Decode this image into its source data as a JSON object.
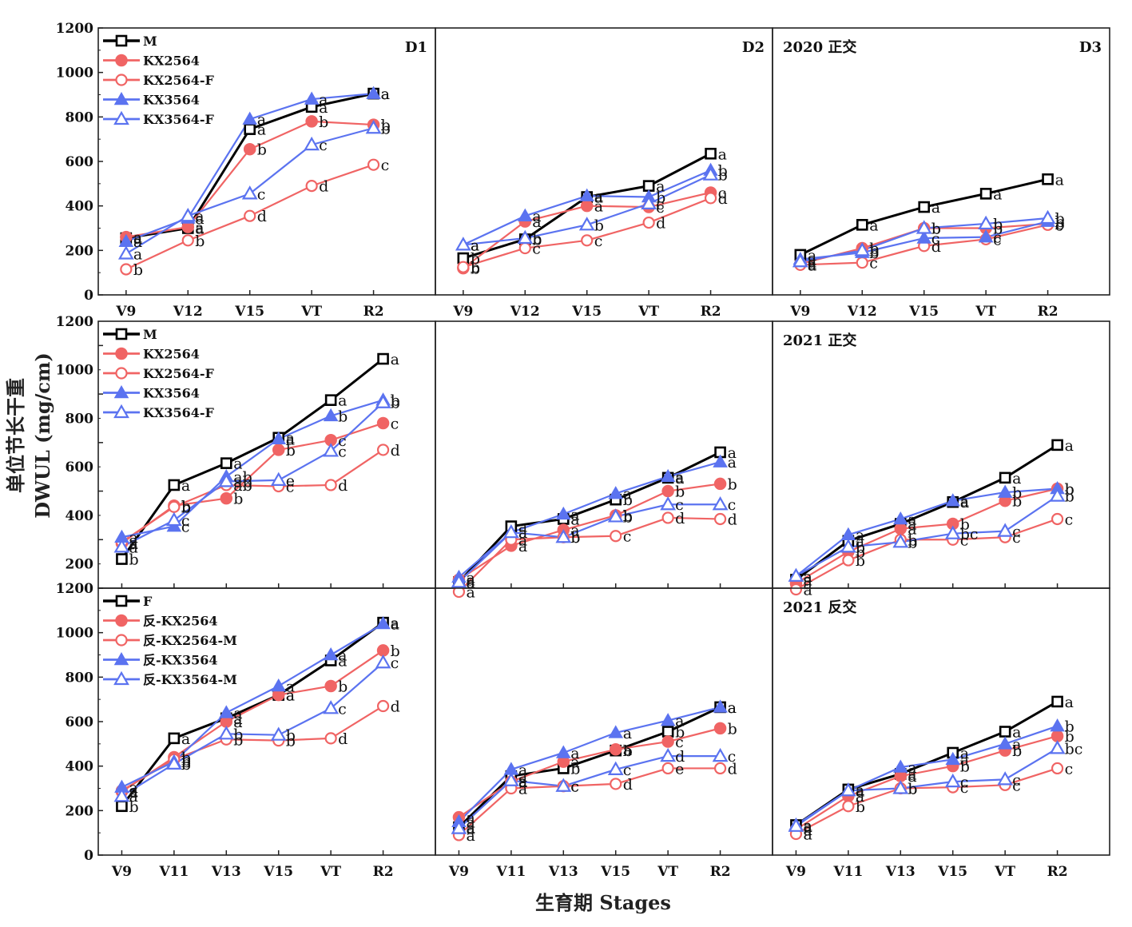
{
  "figure": {
    "ylabel_cn": "单位节长干重",
    "ylabel_en": "DWUL (mg/cm)",
    "xlabel": "生育期 Stages"
  },
  "colors": {
    "M": "#000000",
    "KX2564": "#f06464",
    "KX2564-F": "#f06464",
    "KX3564": "#5b73f0",
    "KX3564-F": "#5b73f0"
  },
  "chart_data": [
    {
      "type": "line",
      "title": "D1",
      "ylim": [
        0,
        1200
      ],
      "yticks": [
        0,
        200,
        400,
        600,
        800,
        1000,
        1200
      ],
      "categories": [
        "V9",
        "V12",
        "V15",
        "VT",
        "R2"
      ],
      "legend": true,
      "series": [
        {
          "name": "M",
          "values": [
            255,
            300,
            745,
            845,
            905
          ],
          "letters": [
            "a",
            "a",
            "a",
            "a",
            "a"
          ]
        },
        {
          "name": "KX2564",
          "values": [
            260,
            305,
            655,
            780,
            765
          ],
          "letters": [
            "a",
            "a",
            "b",
            "b",
            "b"
          ]
        },
        {
          "name": "KX2564-F",
          "values": [
            115,
            245,
            355,
            490,
            585
          ],
          "letters": [
            "b",
            "b",
            "d",
            "d",
            "c"
          ]
        },
        {
          "name": "KX3564",
          "values": [
            240,
            345,
            790,
            880,
            905
          ],
          "letters": [
            "a",
            "a",
            "a",
            "a",
            "a"
          ]
        },
        {
          "name": "KX3564-F",
          "values": [
            185,
            355,
            455,
            675,
            750
          ],
          "letters": [
            "a",
            "a",
            "c",
            "c",
            "b"
          ]
        }
      ]
    },
    {
      "type": "line",
      "title": "D2",
      "ylim": [
        0,
        1200
      ],
      "categories": [
        "V9",
        "V12",
        "V15",
        "VT",
        "R2"
      ],
      "series": [
        {
          "name": "M",
          "values": [
            165,
            250,
            440,
            490,
            635
          ],
          "letters": [
            "b",
            "b",
            "a",
            "a",
            "a"
          ]
        },
        {
          "name": "KX2564",
          "values": [
            120,
            330,
            400,
            395,
            460
          ],
          "letters": [
            "b",
            "a",
            "a",
            "c",
            "c"
          ]
        },
        {
          "name": "KX2564-F",
          "values": [
            125,
            210,
            245,
            325,
            435
          ],
          "letters": [
            "b",
            "c",
            "c",
            "d",
            "d"
          ]
        },
        {
          "name": "KX3564",
          "values": [
            225,
            355,
            445,
            440,
            560
          ],
          "letters": [
            "a",
            "a",
            "a",
            "b",
            "b"
          ]
        },
        {
          "name": "KX3564-F",
          "values": [
            225,
            255,
            315,
            410,
            540
          ],
          "letters": [
            "a",
            "b",
            "b",
            "c",
            "b"
          ]
        }
      ]
    },
    {
      "type": "line",
      "title": "D3",
      "note": "2020 正交",
      "ylim": [
        0,
        1200
      ],
      "categories": [
        "V9",
        "V12",
        "V15",
        "VT",
        "R2"
      ],
      "series": [
        {
          "name": "M",
          "values": [
            180,
            315,
            395,
            455,
            520
          ],
          "letters": [
            "a",
            "a",
            "a",
            "a",
            "a"
          ]
        },
        {
          "name": "KX2564",
          "values": [
            140,
            210,
            300,
            300,
            320
          ],
          "letters": [
            "a",
            "b",
            "b",
            "b",
            "b"
          ]
        },
        {
          "name": "KX2564-F",
          "values": [
            135,
            145,
            220,
            250,
            315
          ],
          "letters": [
            "a",
            "c",
            "d",
            "c",
            "c"
          ]
        },
        {
          "name": "KX3564",
          "values": [
            160,
            190,
            255,
            260,
            330
          ],
          "letters": [
            "a",
            "b",
            "c",
            "c",
            "b"
          ]
        },
        {
          "name": "KX3564-F",
          "values": [
            150,
            200,
            300,
            320,
            345
          ],
          "letters": [
            "a",
            "b",
            "b",
            "b",
            "b"
          ]
        }
      ]
    },
    {
      "type": "line",
      "ylim": [
        100,
        1200
      ],
      "yticks": [
        200,
        400,
        600,
        800,
        1000,
        1200
      ],
      "legend": true,
      "categories": [
        "V9",
        "V11",
        "V13",
        "V15",
        "VT",
        "R2"
      ],
      "series": [
        {
          "name": "M",
          "values": [
            220,
            525,
            615,
            720,
            875,
            1045
          ],
          "letters": [
            "b",
            "a",
            "a",
            "a",
            "a",
            "a"
          ]
        },
        {
          "name": "KX2564",
          "values": [
            285,
            440,
            470,
            670,
            710,
            780
          ],
          "letters": [
            "a",
            "b",
            "b",
            "b",
            "c",
            "c"
          ]
        },
        {
          "name": "KX2564-F",
          "values": [
            290,
            435,
            525,
            520,
            525,
            670
          ],
          "letters": [
            "a",
            "b",
            "ab",
            "c",
            "d",
            "d"
          ]
        },
        {
          "name": "KX3564",
          "values": [
            310,
            355,
            560,
            715,
            810,
            875
          ],
          "letters": [
            "a",
            "c",
            "ab",
            "a",
            "b",
            "b"
          ]
        },
        {
          "name": "KX3564-F",
          "values": [
            270,
            380,
            540,
            545,
            665,
            865
          ],
          "letters": [
            "a",
            "c",
            "ab",
            "e",
            "c",
            "b"
          ]
        }
      ]
    },
    {
      "type": "line",
      "ylim": [
        100,
        1200
      ],
      "categories": [
        "V9",
        "V11",
        "V13",
        "V15",
        "VT",
        "R2"
      ],
      "series": [
        {
          "name": "M",
          "values": [
            125,
            355,
            385,
            465,
            555,
            660
          ],
          "letters": [
            "a",
            "a",
            "a",
            "b",
            "a",
            "a"
          ]
        },
        {
          "name": "KX2564",
          "values": [
            135,
            275,
            340,
            400,
            500,
            530
          ],
          "letters": [
            "a",
            "a",
            "a",
            "b",
            "b",
            "b"
          ]
        },
        {
          "name": "KX2564-F",
          "values": [
            85,
            300,
            310,
            315,
            390,
            385
          ],
          "letters": [
            "a",
            "a",
            "b",
            "c",
            "d",
            "d"
          ]
        },
        {
          "name": "KX3564",
          "values": [
            145,
            330,
            405,
            490,
            560,
            620
          ],
          "letters": [
            "a",
            "a",
            "a",
            "a",
            "a",
            "a"
          ]
        },
        {
          "name": "KX3564-F",
          "values": [
            125,
            330,
            310,
            395,
            445,
            445
          ],
          "letters": [
            "a",
            "a",
            "b",
            "b",
            "c",
            "c"
          ]
        }
      ]
    },
    {
      "type": "line",
      "note": "2021 正交",
      "ylim": [
        100,
        1200
      ],
      "categories": [
        "V9",
        "V11",
        "V13",
        "V15",
        "VT",
        "R2"
      ],
      "series": [
        {
          "name": "M",
          "values": [
            135,
            295,
            365,
            455,
            555,
            690
          ],
          "letters": [
            "a",
            "a",
            "a",
            "a",
            "a",
            "a"
          ]
        },
        {
          "name": "KX2564",
          "values": [
            120,
            250,
            345,
            365,
            460,
            510
          ],
          "letters": [
            "a",
            "b",
            "a",
            "b",
            "b",
            "b"
          ]
        },
        {
          "name": "KX2564-F",
          "values": [
            95,
            215,
            300,
            300,
            310,
            385
          ],
          "letters": [
            "a",
            "b",
            "b",
            "c",
            "c",
            "c"
          ]
        },
        {
          "name": "KX3564",
          "values": [
            150,
            320,
            385,
            460,
            495,
            510
          ],
          "letters": [
            "a",
            "a",
            "a",
            "a",
            "b",
            "b"
          ]
        },
        {
          "name": "KX3564-F",
          "values": [
            150,
            270,
            290,
            325,
            335,
            480
          ],
          "letters": [
            "a",
            "b",
            "b",
            "bc",
            "c",
            "b"
          ]
        }
      ]
    },
    {
      "type": "line",
      "ylim": [
        0,
        1200
      ],
      "yticks": [
        0,
        200,
        400,
        600,
        800,
        1000,
        1200
      ],
      "legend": true,
      "categories": [
        "V9",
        "V11",
        "V13",
        "V15",
        "VT",
        "R2"
      ],
      "series": [
        {
          "name": "F",
          "values": [
            220,
            525,
            615,
            720,
            875,
            1045
          ],
          "letters": [
            "b",
            "a",
            "a",
            "a",
            "a",
            "a"
          ]
        },
        {
          "name": "反-KX2564",
          "values": [
            285,
            440,
            600,
            720,
            760,
            920
          ],
          "letters": [
            "a",
            "b",
            "a",
            "a",
            "b",
            "b"
          ]
        },
        {
          "name": "反-KX2564-M",
          "values": [
            290,
            430,
            520,
            515,
            525,
            670
          ],
          "letters": [
            "a",
            "b",
            "b",
            "b",
            "d",
            "d"
          ]
        },
        {
          "name": "反-KX3564",
          "values": [
            305,
            420,
            640,
            760,
            900,
            1040
          ],
          "letters": [
            "a",
            "b",
            "a",
            "a",
            "a",
            "a"
          ]
        },
        {
          "name": "反-KX3564-M",
          "values": [
            265,
            410,
            545,
            540,
            660,
            865
          ],
          "letters": [
            "a",
            "b",
            "b",
            "b",
            "c",
            "c"
          ]
        }
      ]
    },
    {
      "type": "line",
      "ylim": [
        0,
        1200
      ],
      "categories": [
        "V9",
        "V11",
        "V13",
        "V15",
        "VT",
        "R2"
      ],
      "series": [
        {
          "name": "F",
          "values": [
            125,
            355,
            390,
            470,
            555,
            665
          ],
          "letters": [
            "a",
            "a",
            "b",
            "b",
            "b",
            "a"
          ]
        },
        {
          "name": "反-KX2564",
          "values": [
            170,
            330,
            420,
            475,
            510,
            570
          ],
          "letters": [
            "a",
            "a",
            "a",
            "a",
            "c",
            "b"
          ]
        },
        {
          "name": "反-KX2564-M",
          "values": [
            90,
            300,
            310,
            320,
            390,
            390
          ],
          "letters": [
            "a",
            "a",
            "c",
            "d",
            "e",
            "d"
          ]
        },
        {
          "name": "反-KX3564",
          "values": [
            150,
            385,
            460,
            550,
            605,
            665
          ],
          "letters": [
            "a",
            "a",
            "a",
            "a",
            "a",
            "a"
          ]
        },
        {
          "name": "反-KX3564-M",
          "values": [
            120,
            335,
            310,
            385,
            445,
            445
          ],
          "letters": [
            "a",
            "a",
            "c",
            "c",
            "d",
            "c"
          ]
        }
      ]
    },
    {
      "type": "line",
      "note": "2021 反交",
      "ylim": [
        0,
        1200
      ],
      "categories": [
        "V9",
        "V11",
        "V13",
        "V15",
        "VT",
        "R2"
      ],
      "series": [
        {
          "name": "F",
          "values": [
            135,
            295,
            365,
            460,
            555,
            690
          ],
          "letters": [
            "a",
            "a",
            "a",
            "a",
            "a",
            "a"
          ]
        },
        {
          "name": "反-KX2564",
          "values": [
            115,
            265,
            355,
            400,
            470,
            535
          ],
          "letters": [
            "a",
            "a",
            "a",
            "b",
            "b",
            "b"
          ]
        },
        {
          "name": "反-KX2564-M",
          "values": [
            95,
            220,
            300,
            305,
            315,
            390
          ],
          "letters": [
            "a",
            "b",
            "b",
            "c",
            "c",
            "c"
          ]
        },
        {
          "name": "反-KX3564",
          "values": [
            135,
            290,
            395,
            430,
            500,
            580
          ],
          "letters": [
            "a",
            "a",
            "a",
            "a",
            "a",
            "b"
          ]
        },
        {
          "name": "反-KX3564-M",
          "values": [
            130,
            290,
            300,
            330,
            340,
            480
          ],
          "letters": [
            "a",
            "a",
            "b",
            "c",
            "c",
            "bc"
          ]
        }
      ]
    }
  ]
}
